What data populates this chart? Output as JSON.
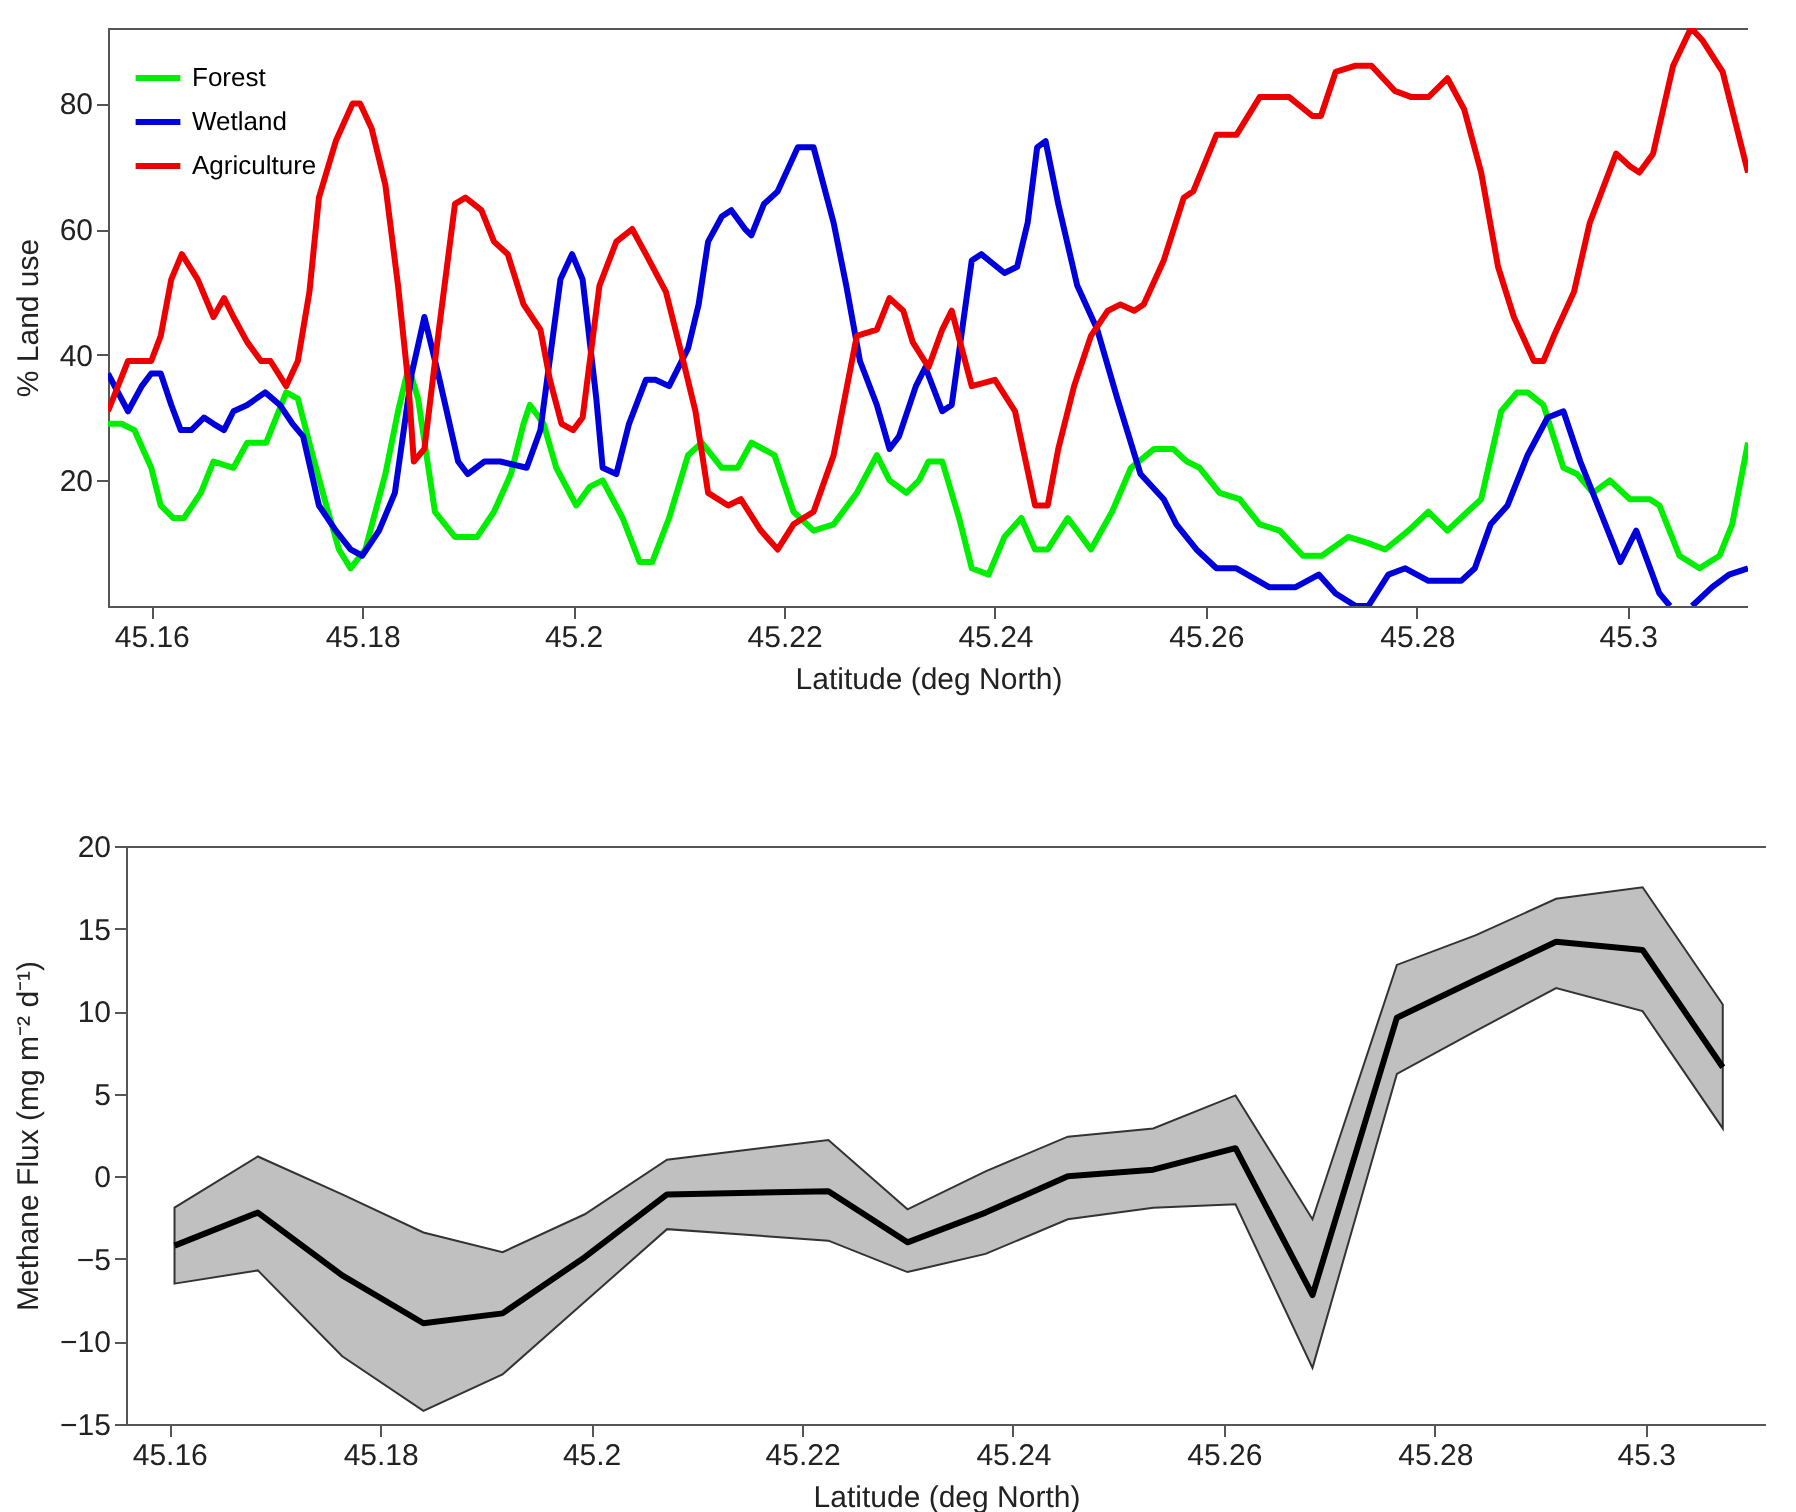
{
  "chart_data": [
    {
      "type": "line",
      "xlabel": "Latitude (deg North)",
      "ylabel": "% Land use",
      "xlim": [
        45.1559,
        45.3114
      ],
      "ylim": [
        0,
        92
      ],
      "xticks": [
        45.16,
        45.18,
        45.2,
        45.22,
        45.24,
        45.26,
        45.28,
        45.3
      ],
      "yticks": [
        20,
        40,
        60,
        80
      ],
      "grid": false,
      "legend": "top left",
      "series": [
        {
          "name": "Forest",
          "color": "#00ee00",
          "x": [
            45.1559,
            45.1572,
            45.1584,
            45.16,
            45.1609,
            45.1621,
            45.1631,
            45.1647,
            45.1659,
            45.1678,
            45.1691,
            45.1709,
            45.1728,
            45.1739,
            45.1753,
            45.1766,
            45.1778,
            45.1789,
            45.1803,
            45.1822,
            45.1834,
            45.1844,
            45.1853,
            45.1869,
            45.1888,
            45.1909,
            45.1925,
            45.1941,
            45.1953,
            45.1959,
            45.1972,
            45.1984,
            45.2003,
            45.2016,
            45.2028,
            45.2047,
            45.2063,
            45.2075,
            45.2091,
            45.2109,
            45.2122,
            45.2141,
            45.2156,
            45.2169,
            45.2191,
            45.2209,
            45.2228,
            45.2247,
            45.2269,
            45.2288,
            45.23,
            45.2316,
            45.2328,
            45.2337,
            45.235,
            45.2366,
            45.2378,
            45.2394,
            45.2409,
            45.2425,
            45.2438,
            45.245,
            45.2469,
            45.2491,
            45.2511,
            45.2529,
            45.2551,
            45.2569,
            45.2582,
            45.2594,
            45.2613,
            45.2632,
            45.2651,
            45.267,
            45.2692,
            45.271,
            45.2735,
            45.2754,
            45.277,
            45.2792,
            45.2811,
            45.2829,
            45.2848,
            45.2861,
            45.288,
            45.2895,
            45.2905,
            45.292,
            45.2939,
            45.2952,
            45.2967,
            45.2983,
            45.3002,
            45.3021,
            45.303,
            45.3049,
            45.3068,
            45.3087,
            45.3099,
            45.3114
          ],
          "values": [
            29,
            29,
            28,
            22,
            16,
            14,
            14,
            18,
            23,
            22,
            26,
            26,
            34,
            33,
            24,
            16,
            9,
            6,
            9,
            21,
            31,
            38,
            33,
            15,
            11,
            11,
            15,
            21,
            29,
            32,
            29,
            22,
            16,
            19,
            20,
            14,
            7,
            7,
            14,
            24,
            26,
            22,
            22,
            26,
            24,
            15,
            12,
            13,
            18,
            24,
            20,
            18,
            20,
            23,
            23,
            14,
            6,
            5,
            11,
            14,
            9,
            9,
            14,
            9,
            15,
            22,
            25,
            25,
            23,
            22,
            18,
            17,
            13,
            12,
            8,
            8,
            11,
            10,
            9,
            12,
            15,
            12,
            15,
            17,
            31,
            34,
            34,
            32,
            22,
            21,
            18,
            20,
            17,
            17,
            16,
            8,
            6,
            8,
            13,
            26
          ]
        },
        {
          "name": "Wetland",
          "color": "#0000dd",
          "x": [
            45.1559,
            45.1578,
            45.1591,
            45.16,
            45.1609,
            45.1619,
            45.1628,
            45.1638,
            45.165,
            45.1659,
            45.1669,
            45.1678,
            45.1691,
            45.1708,
            45.1722,
            45.1734,
            45.1744,
            45.1759,
            45.1775,
            45.1789,
            45.18,
            45.1816,
            45.1831,
            45.1847,
            45.1859,
            45.1872,
            45.1891,
            45.19,
            45.1916,
            45.1931,
            45.1956,
            45.1969,
            45.1988,
            45.1999,
            45.2009,
            45.2022,
            45.2028,
            45.2041,
            45.2053,
            45.2069,
            45.2078,
            45.2091,
            45.2109,
            45.2119,
            45.2128,
            45.2141,
            45.215,
            45.2163,
            45.2169,
            45.2181,
            45.2194,
            45.2213,
            45.2228,
            45.2247,
            45.2259,
            45.2272,
            45.2288,
            45.23,
            45.2309,
            45.2325,
            45.2334,
            45.235,
            45.2359,
            45.2378,
            45.2387,
            45.2409,
            45.2421,
            45.2431,
            45.244,
            45.2448,
            45.246,
            45.2478,
            45.2497,
            45.2516,
            45.2538,
            45.256,
            45.2572,
            45.2591,
            45.261,
            45.2629,
            45.266,
            45.2685,
            45.2707,
            45.2723,
            45.2742,
            45.2754,
            45.2773,
            45.2789,
            45.2811,
            45.2823,
            45.2842,
            45.2855,
            45.287,
            45.2886,
            45.2905,
            45.2924,
            45.2939,
            45.2955,
            45.2974,
            45.2993,
            45.3008,
            45.303,
            45.304,
            45.305,
            45.3061,
            45.308,
            45.3096,
            45.3114
          ],
          "values": [
            37,
            31,
            35,
            37,
            37,
            32,
            28,
            28,
            30,
            29,
            28,
            31,
            32,
            34,
            32,
            29,
            27,
            16,
            12,
            9,
            8,
            12,
            18,
            37,
            46,
            37,
            23,
            21,
            23,
            23,
            22,
            28,
            52,
            56,
            52,
            33,
            22,
            21,
            29,
            36,
            36,
            35,
            41,
            48,
            58,
            62,
            63,
            60,
            59,
            64,
            66,
            73,
            73,
            61,
            51,
            39,
            32,
            25,
            27,
            35,
            38,
            31,
            32,
            55,
            56,
            53,
            54,
            61,
            73,
            74,
            64,
            51,
            44,
            33,
            21,
            17,
            13,
            9,
            6,
            6,
            3,
            3,
            5,
            2,
            0,
            0,
            5,
            6,
            4,
            4,
            4,
            6,
            13,
            16,
            24,
            30,
            31,
            23,
            15,
            7,
            12,
            2,
            0,
            null,
            0,
            3,
            5,
            6
          ]
        },
        {
          "name": "Agriculture",
          "color": "#ee0000",
          "x": [
            45.1559,
            45.1578,
            45.16,
            45.1609,
            45.1619,
            45.1629,
            45.1644,
            45.1659,
            45.1669,
            45.1678,
            45.1691,
            45.1704,
            45.1713,
            45.1728,
            45.1739,
            45.175,
            45.1759,
            45.1775,
            45.1791,
            45.1798,
            45.1809,
            45.1822,
            45.1834,
            45.1844,
            45.1849,
            45.1859,
            45.1872,
            45.1888,
            45.1898,
            45.1913,
            45.1925,
            45.1938,
            45.1953,
            45.1969,
            45.1978,
            45.1989,
            45.2,
            45.2009,
            45.2025,
            45.2041,
            45.2056,
            45.2069,
            45.2088,
            45.2103,
            45.2116,
            45.2128,
            45.2147,
            45.2159,
            45.2178,
            45.2194,
            45.2209,
            45.2228,
            45.2247,
            45.2269,
            45.2288,
            45.23,
            45.2313,
            45.2322,
            45.2337,
            45.235,
            45.2359,
            45.2378,
            45.24,
            45.2419,
            45.2438,
            45.245,
            45.246,
            45.2475,
            45.2491,
            45.2507,
            45.2519,
            45.2532,
            45.2541,
            45.256,
            45.2579,
            45.2588,
            45.261,
            45.2629,
            45.2651,
            45.266,
            45.2679,
            45.2701,
            45.2709,
            45.2723,
            45.2742,
            45.2757,
            45.2779,
            45.2795,
            45.2811,
            45.2829,
            45.2845,
            45.2861,
            45.2877,
            45.2892,
            45.2911,
            45.292,
            45.293,
            45.2949,
            45.2964,
            45.2989,
            45.3002,
            45.3011,
            45.3024,
            45.3043,
            45.306,
            45.3071,
            45.309,
            45.3114
          ],
          "values": [
            31,
            39,
            39,
            43,
            52,
            56,
            52,
            46,
            49,
            46,
            42,
            39,
            39,
            35,
            39,
            50,
            65,
            74,
            80,
            80,
            76,
            67,
            51,
            35,
            23,
            25,
            43,
            64,
            65,
            63,
            58,
            56,
            48,
            44,
            36,
            29,
            28,
            30,
            51,
            58,
            60,
            56,
            50,
            40,
            31,
            18,
            16,
            17,
            12,
            9,
            13,
            15,
            24,
            43,
            44,
            49,
            47,
            42,
            38,
            44,
            47,
            35,
            36,
            31,
            16,
            16,
            25,
            35,
            43,
            47,
            48,
            47,
            48,
            55,
            65,
            66,
            75,
            75,
            81,
            81,
            81,
            78,
            78,
            85,
            86,
            86,
            82,
            81,
            81,
            84,
            79,
            69,
            54,
            46,
            39,
            39,
            43,
            50,
            61,
            72,
            70,
            69,
            72,
            86,
            92,
            90,
            85,
            69
          ]
        }
      ]
    },
    {
      "type": "line",
      "xlabel": "Latitude (deg North)",
      "ylabel": "Methane Flux (mg m⁻² d⁻¹)",
      "xlim": [
        45.1559,
        45.3114
      ],
      "ylim": [
        -15,
        20
      ],
      "xticks": [
        45.16,
        45.18,
        45.2,
        45.22,
        45.24,
        45.26,
        45.28,
        45.3
      ],
      "yticks": [
        -15,
        -10,
        -5,
        0,
        5,
        10,
        15,
        20
      ],
      "grid": false,
      "x": [
        45.1605,
        45.1684,
        45.1764,
        45.1841,
        45.1916,
        45.1994,
        45.2072,
        45.2225,
        45.23,
        45.2374,
        45.2452,
        45.2533,
        45.2611,
        45.2684,
        45.2764,
        45.2839,
        45.2915,
        45.2997,
        45.3073
      ],
      "series": [
        {
          "color": "#000000",
          "values": [
            -4.2,
            -2.2,
            -6.0,
            -8.9,
            -8.3,
            -4.9,
            -1.1,
            -0.9,
            -4.0,
            -2.2,
            0.0,
            0.4,
            1.7,
            -7.2,
            9.6,
            11.9,
            14.2,
            13.7,
            6.6
          ],
          "lower": [
            -6.5,
            -5.7,
            -10.9,
            -14.2,
            -12.0,
            -7.6,
            -3.2,
            -3.9,
            -5.8,
            -4.7,
            -2.6,
            -1.9,
            -1.7,
            -11.6,
            6.2,
            8.8,
            11.4,
            10.0,
            2.9
          ],
          "upper": [
            -1.9,
            1.2,
            -1.1,
            -3.4,
            -4.6,
            -2.3,
            1.0,
            2.2,
            -2.0,
            0.3,
            2.4,
            2.9,
            4.9,
            -2.6,
            12.8,
            14.6,
            16.8,
            17.5,
            10.4
          ]
        }
      ]
    }
  ]
}
